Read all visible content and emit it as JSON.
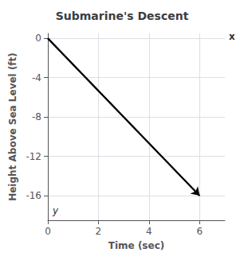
{
  "chart_data": {
    "type": "line",
    "title": "Submarine's Descent",
    "xlabel": "Time (sec)",
    "ylabel": "Height Above Sea Level (ft)",
    "x": [
      0,
      6
    ],
    "values": [
      0,
      -16
    ],
    "color": "#000000",
    "marker": "arrow",
    "xlim": [
      0,
      7.0
    ],
    "ylim": [
      -18.5,
      0.5
    ],
    "xticks": [
      0,
      2,
      4,
      6
    ],
    "yticks": [
      0,
      -4,
      -8,
      -12,
      -16
    ],
    "grid": true,
    "annotations": [
      "x",
      "y"
    ]
  }
}
